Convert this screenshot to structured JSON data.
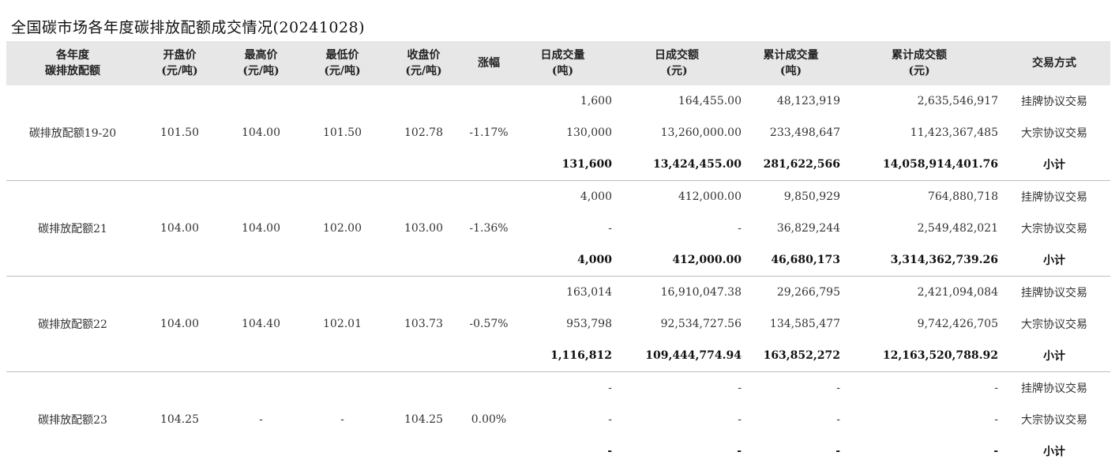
{
  "title": "全国碳市场各年度碳排放配额成交情况(20241028)",
  "headers": {
    "year": [
      "各年度",
      "碳排放配额"
    ],
    "open": [
      "开盘价",
      "(元/吨)"
    ],
    "high": [
      "最高价",
      "(元/吨)"
    ],
    "low": [
      "最低价",
      "(元/吨)"
    ],
    "close": [
      "收盘价",
      "(元/吨)"
    ],
    "change": [
      "涨幅"
    ],
    "daily_vol": [
      "日成交量",
      "(吨)"
    ],
    "daily_amt": [
      "日成交额",
      "(元)"
    ],
    "cum_vol": [
      "累计成交量",
      "(吨)"
    ],
    "cum_amt": [
      "累计成交额",
      "(元)"
    ],
    "mode": [
      "交易方式"
    ]
  },
  "groups": [
    {
      "name": "碳排放配额19-20",
      "open": "101.50",
      "high": "104.00",
      "low": "101.50",
      "close": "102.78",
      "change": "-1.17%",
      "rows": [
        {
          "daily_vol": "1,600",
          "daily_amt": "164,455.00",
          "cum_vol": "48,123,919",
          "cum_amt": "2,635,546,917",
          "mode": "挂牌协议交易"
        },
        {
          "daily_vol": "130,000",
          "daily_amt": "13,260,000.00",
          "cum_vol": "233,498,647",
          "cum_amt": "11,423,367,485",
          "mode": "大宗协议交易"
        },
        {
          "daily_vol": "131,600",
          "daily_amt": "13,424,455.00",
          "cum_vol": "281,622,566",
          "cum_amt": "14,058,914,401.76",
          "mode": "小计"
        }
      ]
    },
    {
      "name": "碳排放配额21",
      "open": "104.00",
      "high": "104.00",
      "low": "102.00",
      "close": "103.00",
      "change": "-1.36%",
      "rows": [
        {
          "daily_vol": "4,000",
          "daily_amt": "412,000.00",
          "cum_vol": "9,850,929",
          "cum_amt": "764,880,718",
          "mode": "挂牌协议交易"
        },
        {
          "daily_vol": "-",
          "daily_amt": "-",
          "cum_vol": "36,829,244",
          "cum_amt": "2,549,482,021",
          "mode": "大宗协议交易"
        },
        {
          "daily_vol": "4,000",
          "daily_amt": "412,000.00",
          "cum_vol": "46,680,173",
          "cum_amt": "3,314,362,739.26",
          "mode": "小计"
        }
      ]
    },
    {
      "name": "碳排放配额22",
      "open": "104.00",
      "high": "104.40",
      "low": "102.01",
      "close": "103.73",
      "change": "-0.57%",
      "rows": [
        {
          "daily_vol": "163,014",
          "daily_amt": "16,910,047.38",
          "cum_vol": "29,266,795",
          "cum_amt": "2,421,094,084",
          "mode": "挂牌协议交易"
        },
        {
          "daily_vol": "953,798",
          "daily_amt": "92,534,727.56",
          "cum_vol": "134,585,477",
          "cum_amt": "9,742,426,705",
          "mode": "大宗协议交易"
        },
        {
          "daily_vol": "1,116,812",
          "daily_amt": "109,444,774.94",
          "cum_vol": "163,852,272",
          "cum_amt": "12,163,520,788.92",
          "mode": "小计"
        }
      ]
    },
    {
      "name": "碳排放配额23",
      "open": "104.25",
      "high": "-",
      "low": "-",
      "close": "104.25",
      "change": "0.00%",
      "rows": [
        {
          "daily_vol": "-",
          "daily_amt": "-",
          "cum_vol": "-",
          "cum_amt": "-",
          "mode": "挂牌协议交易"
        },
        {
          "daily_vol": "-",
          "daily_amt": "-",
          "cum_vol": "-",
          "cum_amt": "-",
          "mode": "大宗协议交易"
        },
        {
          "daily_vol": "-",
          "daily_amt": "-",
          "cum_vol": "-",
          "cum_amt": "-",
          "mode": "小计"
        }
      ]
    }
  ]
}
